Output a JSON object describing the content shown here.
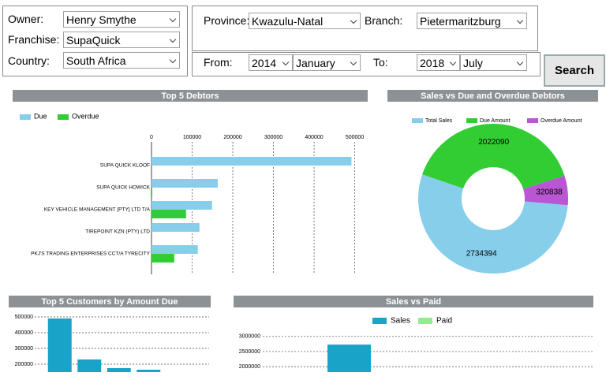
{
  "form": {
    "owner": {
      "label": "Owner:",
      "value": "Henry Smythe"
    },
    "franchise": {
      "label": "Franchise:",
      "value": "SupaQuick"
    },
    "country": {
      "label": "Country:",
      "value": "South Africa"
    },
    "province": {
      "label": "Province:",
      "value": "Kwazulu-Natal"
    },
    "branch": {
      "label": "Branch:",
      "value": "Pietermaritzburg"
    },
    "from": {
      "label": "From:",
      "year": "2014",
      "month": "January"
    },
    "to": {
      "label": "To:",
      "year": "2018",
      "month": "July"
    },
    "search": "Search"
  },
  "chart_data": [
    {
      "type": "hbar",
      "title": "Top 5 Debtors",
      "categories": [
        "SUPA QUICK KLOOF",
        "SUPA QUICK HOWICK",
        "KEY VEHICLE MANAGEMENT [PTY] LTD T/A",
        "TIREPOINT KZN (PTY) LTD",
        "PKJ'S TRADING ENTERPRISES CCT/A TYRECITY"
      ],
      "series": [
        {
          "name": "Due",
          "color": "#87ceeb",
          "values": [
            492000,
            163000,
            149000,
            118000,
            114000
          ]
        },
        {
          "name": "Overdue",
          "color": "#32cd32",
          "values": [
            0,
            2000,
            85000,
            0,
            56000
          ]
        }
      ],
      "xlim": [
        0,
        530000
      ],
      "xticks": [
        0,
        100000,
        200000,
        300000,
        400000,
        500000
      ],
      "grid": true
    },
    {
      "type": "donut",
      "title": "Sales vs Due and Overdue Debtors",
      "categories": [
        "Total Sales",
        "Due Amount",
        "Overdue Amount"
      ],
      "values": [
        2734394,
        2022090,
        320838
      ],
      "colors": [
        "#87ceeb",
        "#32cd32",
        "#ba55d3"
      ]
    },
    {
      "type": "bar",
      "title": "Top 5 Customers by Amount Due",
      "categories": [
        null,
        null,
        null,
        null
      ],
      "series": [
        {
          "name": null,
          "color": "#1aa3c8",
          "values": [
            490000,
            230000,
            175000,
            165000
          ]
        }
      ],
      "ylim": [
        150000,
        525000
      ],
      "yticks": [
        200000,
        300000,
        400000,
        500000
      ],
      "grid": true
    },
    {
      "type": "bar",
      "title": "Sales vs Paid",
      "categories": [
        null
      ],
      "series": [
        {
          "name": "Sales",
          "color": "#1aa3c8",
          "values": [
            2730000
          ]
        },
        {
          "name": "Paid",
          "color": "#90ee90",
          "values": [
            null
          ]
        }
      ],
      "ylim": [
        1820000,
        3700000
      ],
      "yticks": [
        2000000,
        2500000,
        3000000
      ],
      "grid": true
    }
  ]
}
